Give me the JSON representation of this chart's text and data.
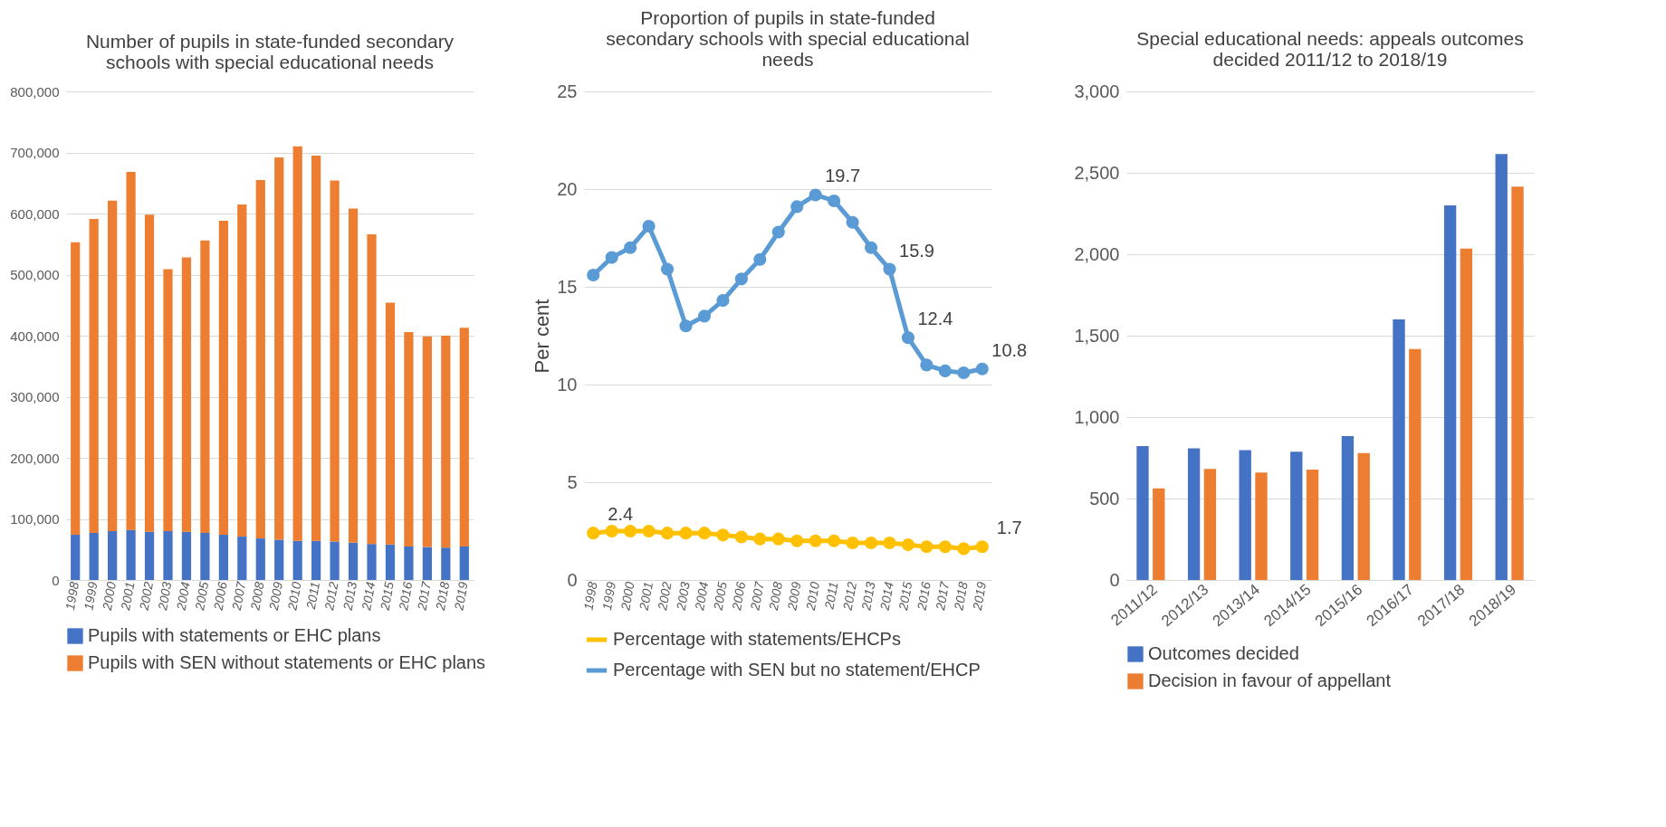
{
  "chart_data": [
    {
      "type": "bar",
      "title": "Number of pupils in state-funded secondary schools with special educational needs",
      "stacked": true,
      "categories": [
        "1998",
        "1999",
        "2000",
        "2001",
        "2002",
        "2003",
        "2004",
        "2005",
        "2006",
        "2007",
        "2008",
        "2009",
        "2010",
        "2011",
        "2012",
        "2013",
        "2014",
        "2015",
        "2016",
        "2017",
        "2018",
        "2019"
      ],
      "series": [
        {
          "name": "Pupils with statements or EHC plans",
          "color": "#4472c4",
          "values": [
            74000,
            77000,
            80000,
            82000,
            79000,
            80000,
            79000,
            77000,
            74000,
            71000,
            68000,
            66000,
            64000,
            64000,
            63000,
            61000,
            59000,
            58000,
            55000,
            54000,
            53000,
            55000
          ]
        },
        {
          "name": "Pupils with SEN without statements or EHC plans",
          "color": "#ed7d31",
          "values": [
            479000,
            514000,
            541000,
            586000,
            519000,
            429000,
            449000,
            479000,
            514000,
            544000,
            587000,
            626000,
            646000,
            631000,
            591000,
            547000,
            507000,
            396000,
            351000,
            345000,
            347000,
            358000
          ]
        }
      ],
      "ylim": [
        0,
        800000
      ],
      "yticks": [
        0,
        {
          "value": 100000,
          "label": "100,000"
        },
        {
          "value": 200000,
          "label": "200,000"
        },
        {
          "value": 300000,
          "label": "300,000"
        },
        {
          "value": 400000,
          "label": "400,000"
        },
        {
          "value": 500000,
          "label": "500,000"
        },
        {
          "value": 600000,
          "label": "600,000"
        },
        {
          "value": 700000,
          "label": "700,000"
        },
        {
          "value": 800000,
          "label": "800,000"
        }
      ],
      "grid": "y",
      "legend": "bottom"
    },
    {
      "type": "line",
      "title": "Proportion of pupils in state-funded secondary schools with special educational needs",
      "ylabel": "Per cent",
      "categories": [
        "1998",
        "1999",
        "2000",
        "2001",
        "2002",
        "2003",
        "2004",
        "2005",
        "2006",
        "2007",
        "2008",
        "2009",
        "2010",
        "2011",
        "2012",
        "2013",
        "2014",
        "2015",
        "2016",
        "2017",
        "2018",
        "2019"
      ],
      "series": [
        {
          "name": "Percentage with statements/EHCPs",
          "color": "#ffc000",
          "values": [
            2.4,
            2.5,
            2.5,
            2.5,
            2.4,
            2.4,
            2.4,
            2.3,
            2.2,
            2.1,
            2.1,
            2.0,
            2.0,
            2.0,
            1.9,
            1.9,
            1.9,
            1.8,
            1.7,
            1.7,
            1.6,
            1.7
          ],
          "value_labels": [
            "2.4",
            null,
            null,
            null,
            null,
            null,
            null,
            null,
            null,
            null,
            null,
            null,
            null,
            null,
            null,
            null,
            null,
            null,
            null,
            null,
            null,
            "1.7"
          ]
        },
        {
          "name": "Percentage with SEN but no statement/EHCP",
          "color": "#5b9bd5",
          "values": [
            15.6,
            16.5,
            17.0,
            18.1,
            15.9,
            13.0,
            13.5,
            14.3,
            15.4,
            16.4,
            17.8,
            19.1,
            19.7,
            19.4,
            18.3,
            17.0,
            15.9,
            12.4,
            11.0,
            10.7,
            10.6,
            10.8
          ],
          "value_labels": [
            null,
            null,
            null,
            null,
            null,
            null,
            null,
            null,
            null,
            null,
            null,
            null,
            "19.7",
            null,
            null,
            null,
            "15.9",
            "12.4",
            null,
            null,
            null,
            "10.8"
          ]
        }
      ],
      "ylim": [
        0,
        25
      ],
      "yticks": [
        0,
        5,
        10,
        15,
        20,
        25
      ],
      "grid": "y",
      "legend": "bottom",
      "marker": "circle",
      "line_style": "solid"
    },
    {
      "type": "bar",
      "title": "Special educational needs: appeals outcomes decided 2011/12 to 2018/19",
      "categories": [
        "2011/12",
        "2012/13",
        "2013/14",
        "2014/15",
        "2015/16",
        "2016/17",
        "2017/18",
        "2018/19"
      ],
      "series": [
        {
          "name": "Outcomes decided",
          "color": "#4472c4",
          "values": [
            822,
            808,
            797,
            788,
            883,
            1600,
            2300,
            2615
          ]
        },
        {
          "name": "Decision in favour of appellant",
          "color": "#ed7d31",
          "values": [
            562,
            682,
            660,
            678,
            779,
            1418,
            2035,
            2415
          ]
        }
      ],
      "ylim": [
        0,
        3000
      ],
      "yticks": [
        0,
        500,
        {
          "value": 1000,
          "label": "1,000"
        },
        {
          "value": 1500,
          "label": "1,500"
        },
        {
          "value": 2000,
          "label": "2,000"
        },
        {
          "value": 2500,
          "label": "2,500"
        },
        {
          "value": 3000,
          "label": "3,000"
        }
      ],
      "grid": "y",
      "legend": "bottom"
    }
  ]
}
